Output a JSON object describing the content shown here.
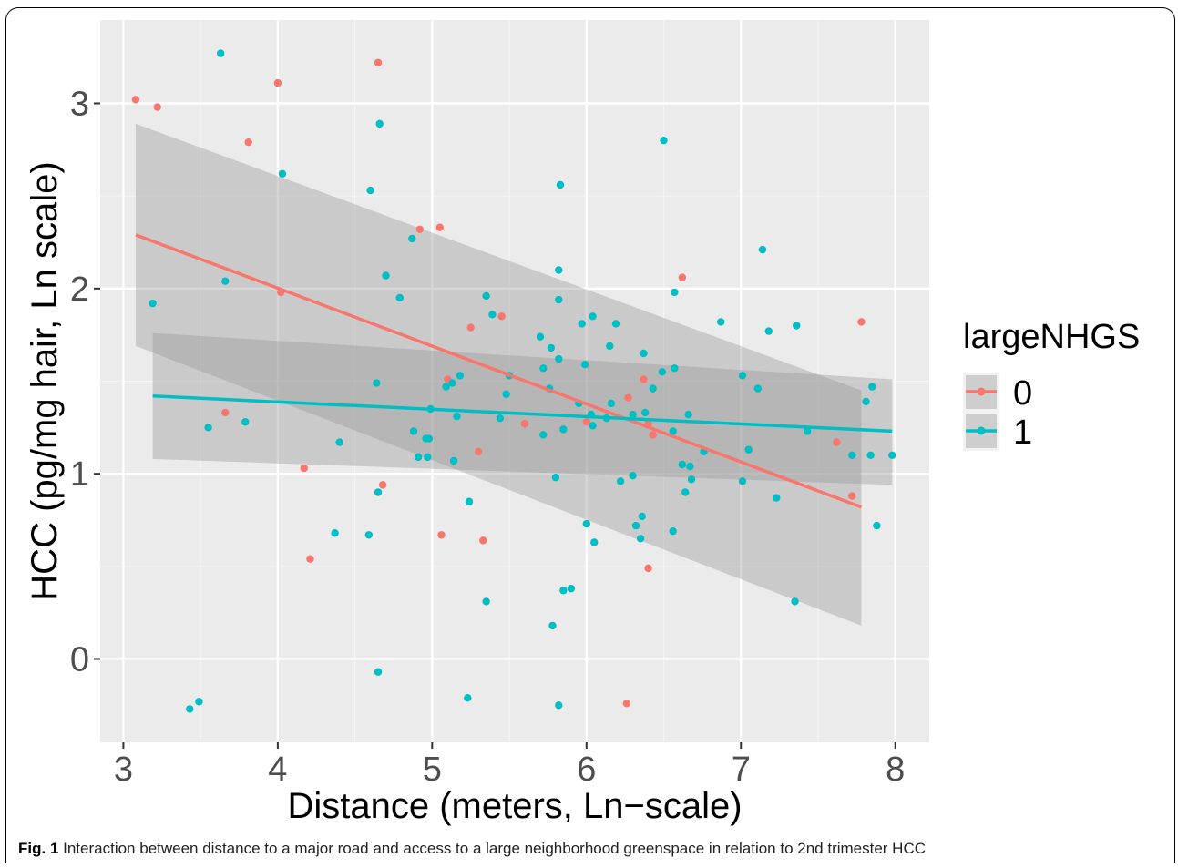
{
  "chart_data": {
    "type": "scatter",
    "xlabel": "Distance (meters, Ln−scale)",
    "ylabel": "HCC (pg/mg hair, Ln scale)",
    "xlim": [
      2.85,
      8.22
    ],
    "ylim": [
      -0.45,
      3.45
    ],
    "xticks": [
      3,
      4,
      5,
      6,
      7,
      8
    ],
    "yticks": [
      0,
      1,
      2,
      3
    ],
    "grid": true,
    "legend": {
      "title": "largeNHGS",
      "placement": "right"
    },
    "series": [
      {
        "name": "0",
        "color": "#F8766D",
        "points": [
          [
            3.08,
            3.02
          ],
          [
            3.22,
            2.98
          ],
          [
            3.81,
            2.79
          ],
          [
            4.0,
            3.11
          ],
          [
            4.65,
            3.22
          ],
          [
            4.02,
            1.98
          ],
          [
            3.66,
            1.33
          ],
          [
            4.17,
            1.03
          ],
          [
            4.21,
            0.54
          ],
          [
            4.68,
            0.94
          ],
          [
            4.92,
            2.32
          ],
          [
            5.05,
            2.33
          ],
          [
            5.1,
            1.51
          ],
          [
            5.25,
            1.79
          ],
          [
            5.45,
            1.85
          ],
          [
            5.3,
            1.12
          ],
          [
            5.06,
            0.67
          ],
          [
            5.33,
            0.64
          ],
          [
            5.6,
            1.27
          ],
          [
            6.0,
            1.28
          ],
          [
            6.27,
            1.41
          ],
          [
            6.37,
            1.51
          ],
          [
            6.4,
            1.27
          ],
          [
            6.43,
            1.21
          ],
          [
            6.4,
            0.49
          ],
          [
            6.26,
            -0.24
          ],
          [
            6.62,
            2.06
          ],
          [
            7.62,
            1.17
          ],
          [
            7.72,
            0.88
          ],
          [
            7.78,
            1.82
          ]
        ],
        "trend": {
          "x": [
            3.08,
            7.78
          ],
          "y": [
            2.29,
            0.82
          ],
          "ci_upper": [
            2.89,
            1.45
          ],
          "ci_lower": [
            1.69,
            0.18
          ]
        }
      },
      {
        "name": "1",
        "color": "#00BFC4",
        "points": [
          [
            3.63,
            3.27
          ],
          [
            3.19,
            1.92
          ],
          [
            3.66,
            2.04
          ],
          [
            3.55,
            1.25
          ],
          [
            3.79,
            1.28
          ],
          [
            3.43,
            -0.27
          ],
          [
            3.49,
            -0.23
          ],
          [
            4.03,
            2.62
          ],
          [
            4.66,
            2.89
          ],
          [
            4.6,
            2.53
          ],
          [
            4.7,
            2.07
          ],
          [
            4.79,
            1.95
          ],
          [
            4.87,
            2.27
          ],
          [
            4.64,
            1.49
          ],
          [
            4.4,
            1.17
          ],
          [
            4.65,
            0.9
          ],
          [
            4.37,
            0.68
          ],
          [
            4.59,
            0.67
          ],
          [
            4.65,
            -0.07
          ],
          [
            4.88,
            1.23
          ],
          [
            4.91,
            1.09
          ],
          [
            4.96,
            1.19
          ],
          [
            4.98,
            1.19
          ],
          [
            4.99,
            1.35
          ],
          [
            4.97,
            1.09
          ],
          [
            5.09,
            1.47
          ],
          [
            5.13,
            1.49
          ],
          [
            5.16,
            1.31
          ],
          [
            5.18,
            1.53
          ],
          [
            5.14,
            1.07
          ],
          [
            5.24,
            0.85
          ],
          [
            5.23,
            -0.21
          ],
          [
            5.35,
            1.96
          ],
          [
            5.39,
            1.86
          ],
          [
            5.44,
            1.3
          ],
          [
            5.48,
            1.43
          ],
          [
            5.5,
            1.53
          ],
          [
            5.35,
            0.31
          ],
          [
            5.7,
            1.74
          ],
          [
            5.72,
            1.57
          ],
          [
            5.77,
            1.68
          ],
          [
            5.82,
            1.62
          ],
          [
            5.76,
            1.46
          ],
          [
            5.72,
            1.21
          ],
          [
            5.82,
            2.1
          ],
          [
            5.82,
            1.94
          ],
          [
            5.83,
            2.56
          ],
          [
            5.8,
            0.98
          ],
          [
            5.78,
            0.18
          ],
          [
            5.82,
            -0.25
          ],
          [
            5.85,
            0.37
          ],
          [
            5.9,
            0.38
          ],
          [
            5.85,
            1.24
          ],
          [
            5.95,
            1.38
          ],
          [
            5.97,
            1.81
          ],
          [
            5.99,
            1.59
          ],
          [
            6.04,
            1.85
          ],
          [
            6.03,
            1.32
          ],
          [
            6.04,
            1.26
          ],
          [
            6.0,
            0.73
          ],
          [
            6.05,
            0.63
          ],
          [
            6.13,
            1.3
          ],
          [
            6.15,
            1.69
          ],
          [
            6.16,
            1.38
          ],
          [
            6.19,
            1.81
          ],
          [
            6.22,
            0.96
          ],
          [
            6.3,
            1.32
          ],
          [
            6.32,
            0.72
          ],
          [
            6.3,
            0.99
          ],
          [
            6.35,
            0.65
          ],
          [
            6.37,
            1.65
          ],
          [
            6.38,
            1.33
          ],
          [
            6.36,
            0.77
          ],
          [
            6.43,
            1.46
          ],
          [
            6.49,
            1.55
          ],
          [
            6.5,
            2.8
          ],
          [
            6.56,
            1.23
          ],
          [
            6.57,
            1.98
          ],
          [
            6.57,
            1.57
          ],
          [
            6.56,
            0.69
          ],
          [
            6.62,
            1.05
          ],
          [
            6.64,
            0.9
          ],
          [
            6.66,
            1.32
          ],
          [
            6.67,
            1.04
          ],
          [
            6.68,
            0.97
          ],
          [
            6.76,
            1.12
          ],
          [
            6.87,
            1.82
          ],
          [
            7.01,
            1.53
          ],
          [
            7.01,
            0.96
          ],
          [
            7.05,
            1.13
          ],
          [
            7.11,
            1.46
          ],
          [
            7.14,
            2.21
          ],
          [
            7.18,
            1.77
          ],
          [
            7.23,
            0.87
          ],
          [
            7.35,
            0.31
          ],
          [
            7.36,
            1.8
          ],
          [
            7.43,
            1.23
          ],
          [
            7.72,
            1.1
          ],
          [
            7.81,
            1.39
          ],
          [
            7.84,
            1.1
          ],
          [
            7.85,
            1.47
          ],
          [
            7.88,
            0.72
          ],
          [
            7.98,
            1.1
          ]
        ],
        "trend": {
          "x": [
            3.19,
            7.98
          ],
          "y": [
            1.42,
            1.23
          ],
          "ci_upper": [
            1.76,
            1.51
          ],
          "ci_lower": [
            1.08,
            0.94
          ]
        }
      }
    ]
  },
  "caption": {
    "label": "Fig. 1",
    "text": " Interaction between distance to a major road and access to a large neighborhood greenspace in relation to 2nd trimester HCC"
  }
}
